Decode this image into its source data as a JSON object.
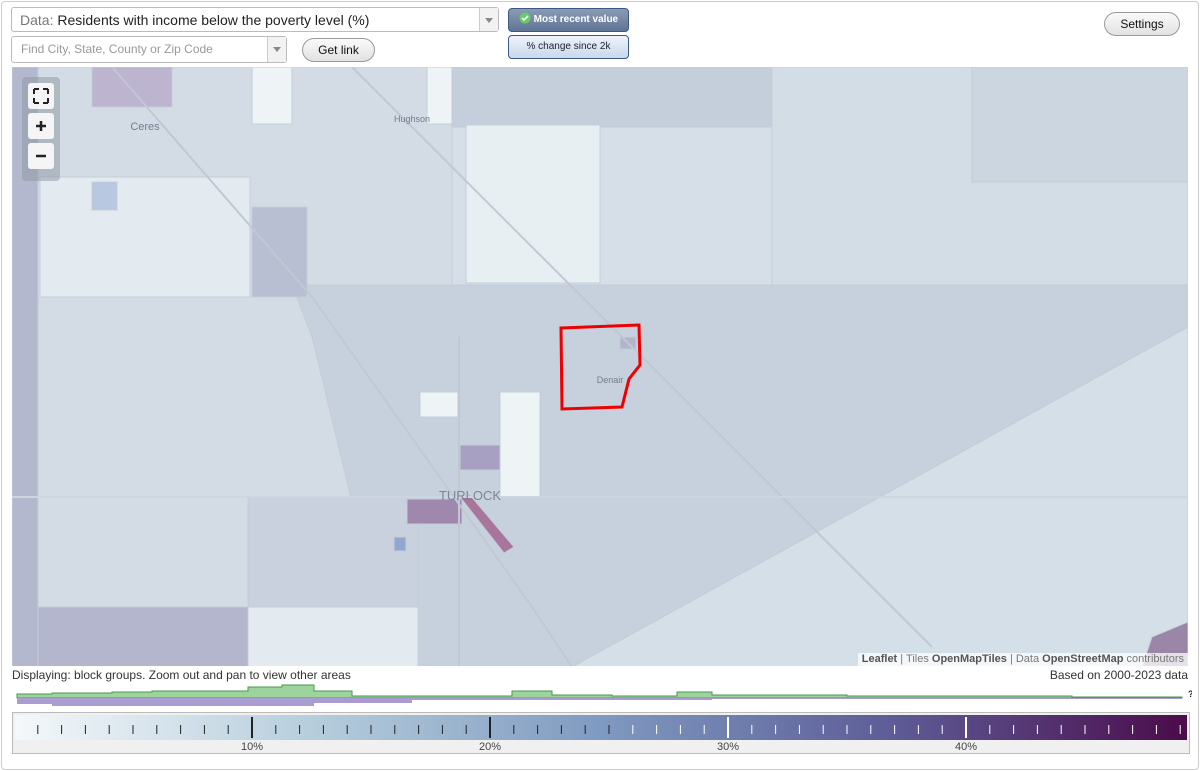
{
  "toolbar": {
    "data_label": "Data:",
    "data_value": "Residents with income below the poverty level (%)",
    "search_placeholder": "Find City, State, County or Zip Code",
    "get_link": "Get link",
    "most_recent": "Most recent value",
    "change": "% change since 2k",
    "settings": "Settings"
  },
  "map": {
    "places": [
      "Ceres",
      "Hughson",
      "Denair",
      "TURLOCK"
    ],
    "attribution": [
      "Leaflet",
      "| Tiles",
      "OpenMapTiles",
      "| Data",
      "OpenStreetMap",
      "contributors"
    ]
  },
  "footer": {
    "displaying": "Displaying: block groups. Zoom out and pan to view other areas",
    "based_on": "Based on 2000-2023 data",
    "help": "?"
  },
  "legend": {
    "labels": [
      "10%",
      "20%",
      "30%",
      "40%"
    ]
  }
}
